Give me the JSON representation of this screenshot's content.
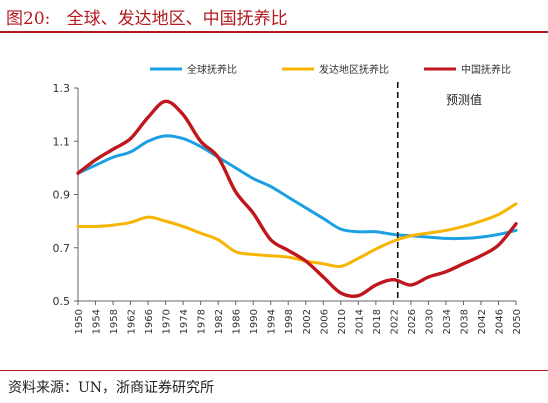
{
  "title": "图20:   全球、发达地区、中国抚养比",
  "source": "资料来源：UN，浙商证券研究所",
  "chart_data": {
    "type": "line",
    "x": [
      1950,
      1954,
      1958,
      1962,
      1966,
      1970,
      1974,
      1978,
      1982,
      1986,
      1990,
      1994,
      1998,
      2002,
      2006,
      2010,
      2014,
      2018,
      2022,
      2026,
      2030,
      2034,
      2038,
      2042,
      2046,
      2050
    ],
    "x_ticks": [
      1950,
      1954,
      1958,
      1962,
      1966,
      1970,
      1974,
      1978,
      1982,
      1986,
      1990,
      1994,
      1998,
      2002,
      2006,
      2010,
      2014,
      2018,
      2022,
      2026,
      2030,
      2034,
      2038,
      2042,
      2046,
      2050
    ],
    "y_ticks": [
      "0.5",
      "0.7",
      "0.9",
      "1.1",
      "1.3"
    ],
    "ylim": [
      0.5,
      1.3
    ],
    "grid": false,
    "legend_position": "top",
    "series": [
      {
        "name": "全球抚养比",
        "color": "#1ba0e2",
        "values": [
          0.98,
          1.01,
          1.04,
          1.06,
          1.1,
          1.12,
          1.11,
          1.08,
          1.04,
          1.0,
          0.96,
          0.93,
          0.89,
          0.85,
          0.81,
          0.77,
          0.76,
          0.76,
          0.75,
          0.745,
          0.74,
          0.735,
          0.735,
          0.74,
          0.75,
          0.765
        ]
      },
      {
        "name": "发达地区抚养比",
        "color": "#f7b500",
        "values": [
          0.78,
          0.78,
          0.785,
          0.795,
          0.815,
          0.8,
          0.78,
          0.755,
          0.73,
          0.685,
          0.675,
          0.67,
          0.665,
          0.65,
          0.64,
          0.63,
          0.66,
          0.695,
          0.725,
          0.745,
          0.755,
          0.765,
          0.78,
          0.8,
          0.825,
          0.865
        ]
      },
      {
        "name": "中国抚养比",
        "color": "#c0161d",
        "values": [
          0.98,
          1.03,
          1.07,
          1.11,
          1.19,
          1.25,
          1.2,
          1.1,
          1.04,
          0.91,
          0.83,
          0.73,
          0.69,
          0.65,
          0.59,
          0.53,
          0.52,
          0.56,
          0.58,
          0.56,
          0.59,
          0.61,
          0.64,
          0.67,
          0.71,
          0.79
        ]
      }
    ],
    "forecast_divider_x": 2023,
    "annotation": "预测值"
  }
}
